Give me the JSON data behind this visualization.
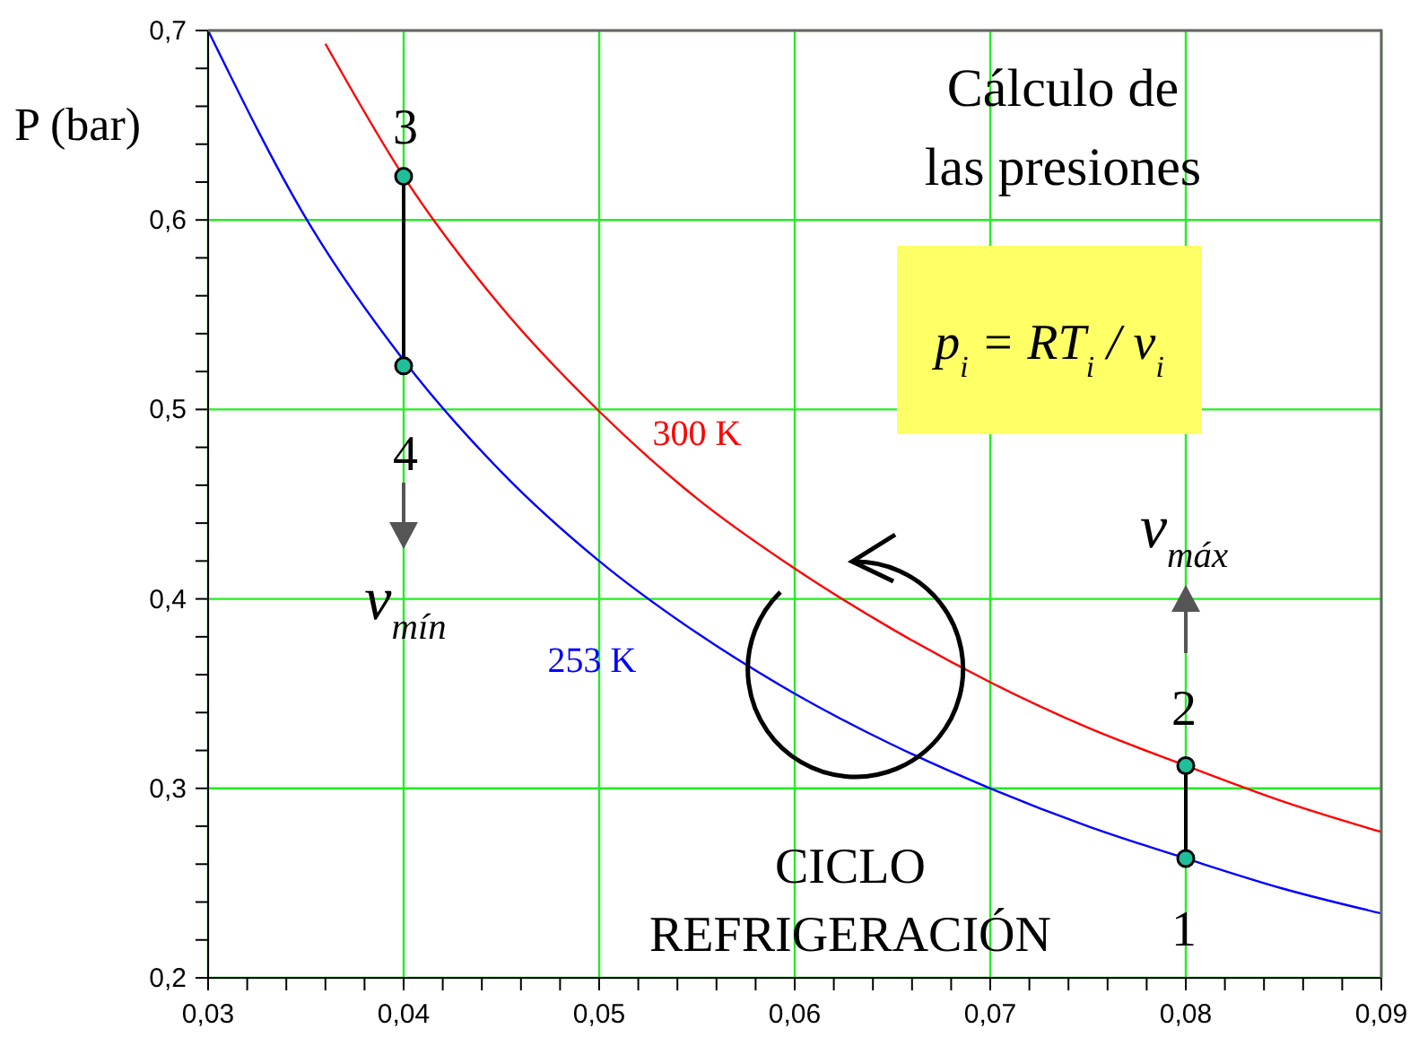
{
  "chart_data": {
    "type": "line",
    "title": "Cálculo de las presiones",
    "ylabel": "P (bar)",
    "xlim": [
      0.03,
      0.09
    ],
    "ylim": [
      0.2,
      0.7
    ],
    "xticks": [
      {
        "value": 0.03,
        "label": "0,03"
      },
      {
        "value": 0.032,
        "label": null
      },
      {
        "value": 0.034,
        "label": null
      },
      {
        "value": 0.036,
        "label": null
      },
      {
        "value": 0.038,
        "label": null
      },
      {
        "value": 0.04,
        "label": "0,04"
      },
      {
        "value": 0.042,
        "label": null
      },
      {
        "value": 0.044,
        "label": null
      },
      {
        "value": 0.046,
        "label": null
      },
      {
        "value": 0.048,
        "label": null
      },
      {
        "value": 0.05,
        "label": "0,05"
      },
      {
        "value": 0.052,
        "label": null
      },
      {
        "value": 0.054,
        "label": null
      },
      {
        "value": 0.056,
        "label": null
      },
      {
        "value": 0.058,
        "label": null
      },
      {
        "value": 0.06,
        "label": "0,06"
      },
      {
        "value": 0.062,
        "label": null
      },
      {
        "value": 0.064,
        "label": null
      },
      {
        "value": 0.066,
        "label": null
      },
      {
        "value": 0.068,
        "label": null
      },
      {
        "value": 0.07,
        "label": "0,07"
      },
      {
        "value": 0.072,
        "label": null
      },
      {
        "value": 0.074,
        "label": null
      },
      {
        "value": 0.076,
        "label": null
      },
      {
        "value": 0.078,
        "label": null
      },
      {
        "value": 0.08,
        "label": "0,08"
      },
      {
        "value": 0.082,
        "label": null
      },
      {
        "value": 0.084,
        "label": null
      },
      {
        "value": 0.086,
        "label": null
      },
      {
        "value": 0.088,
        "label": null
      },
      {
        "value": 0.09,
        "label": "0,09"
      }
    ],
    "yticks": [
      {
        "value": 0.2,
        "label": "0,2"
      },
      {
        "value": 0.22,
        "label": null
      },
      {
        "value": 0.24,
        "label": null
      },
      {
        "value": 0.26,
        "label": null
      },
      {
        "value": 0.28,
        "label": null
      },
      {
        "value": 0.3,
        "label": "0,3"
      },
      {
        "value": 0.32,
        "label": null
      },
      {
        "value": 0.34,
        "label": null
      },
      {
        "value": 0.36,
        "label": null
      },
      {
        "value": 0.38,
        "label": null
      },
      {
        "value": 0.4,
        "label": "0,4"
      },
      {
        "value": 0.42,
        "label": null
      },
      {
        "value": 0.44,
        "label": null
      },
      {
        "value": 0.46,
        "label": null
      },
      {
        "value": 0.48,
        "label": null
      },
      {
        "value": 0.5,
        "label": "0,5"
      },
      {
        "value": 0.52,
        "label": null
      },
      {
        "value": 0.54,
        "label": null
      },
      {
        "value": 0.56,
        "label": null
      },
      {
        "value": 0.58,
        "label": null
      },
      {
        "value": 0.6,
        "label": "0,6"
      },
      {
        "value": 0.62,
        "label": null
      },
      {
        "value": 0.64,
        "label": null
      },
      {
        "value": 0.66,
        "label": null
      },
      {
        "value": 0.68,
        "label": null
      },
      {
        "value": 0.7,
        "label": "0,7"
      }
    ],
    "grid": true,
    "legend": false,
    "marker": "none",
    "line_style": "solid",
    "series": [
      {
        "name": "300 K",
        "color": "#ff0000",
        "x": [
          0.036,
          0.04,
          0.045,
          0.05,
          0.055,
          0.06,
          0.065,
          0.07,
          0.075,
          0.08,
          0.085,
          0.09
        ],
        "values": [
          0.693,
          0.623,
          0.554,
          0.499,
          0.453,
          0.416,
          0.384,
          0.356,
          0.332,
          0.312,
          0.293,
          0.277
        ]
      },
      {
        "name": "253 K",
        "color": "#0000ff",
        "x": [
          0.03,
          0.035,
          0.04,
          0.045,
          0.05,
          0.055,
          0.06,
          0.065,
          0.07,
          0.075,
          0.08,
          0.085,
          0.09
        ],
        "values": [
          0.7,
          0.601,
          0.526,
          0.467,
          0.42,
          0.382,
          0.35,
          0.323,
          0.3,
          0.28,
          0.263,
          0.247,
          0.234
        ]
      },
      {
        "color": "#000000",
        "x": [
          0.04,
          0.04
        ],
        "values": [
          0.623,
          0.523
        ]
      },
      {
        "color": "#000000",
        "x": [
          0.08,
          0.08
        ],
        "values": [
          0.312,
          0.263
        ]
      },
      {
        "type": "scatter",
        "marker": "circle",
        "color": "#1fbf9b",
        "x": [
          0.04,
          0.04,
          0.08,
          0.08
        ],
        "values": [
          0.623,
          0.523,
          0.312,
          0.263
        ]
      }
    ],
    "annotations": [
      "3",
      "4",
      "2",
      "1",
      "v$_{mín}$",
      "v$_{máx}$",
      "CICLO REFRIGERACIÓN",
      "p$_{i}$ = RT$_{i}$ / v$_{i}$"
    ]
  }
}
